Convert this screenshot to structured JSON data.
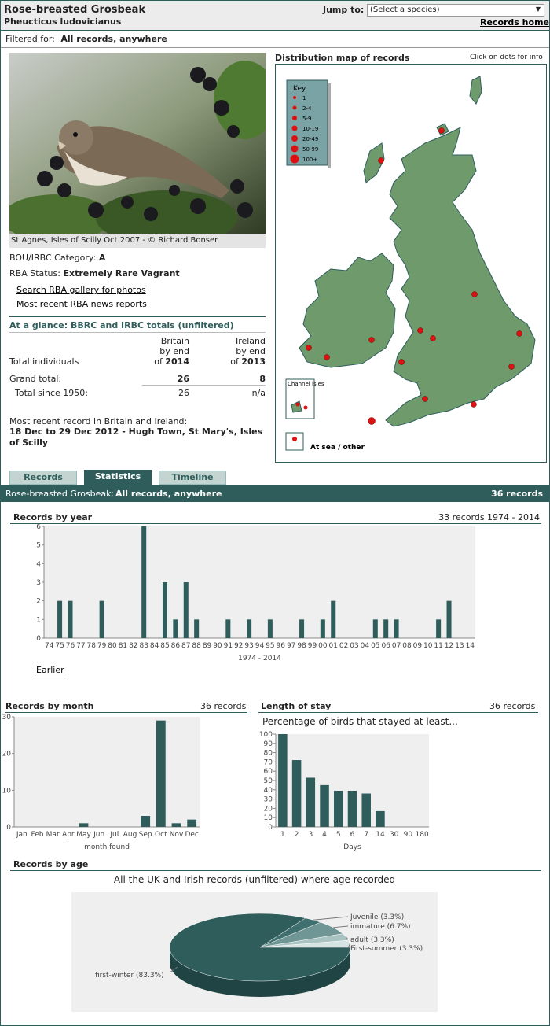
{
  "header": {
    "species_name": "Rose-breasted Grosbeak",
    "scientific_name": "Pheucticus ludovicianus",
    "jump_label": "Jump to:",
    "species_select": "(Select a species)",
    "records_home": "Records home"
  },
  "filter": {
    "label": "Filtered for:",
    "value": "All records, anywhere"
  },
  "photo": {
    "caption": "St Agnes, Isles of Scilly Oct 2007 - © Richard Bonser"
  },
  "info": {
    "category_label": "BOU/IRBC Category:",
    "category_value": "A",
    "status_label": "RBA Status:",
    "status_value": "Extremely Rare Vagrant",
    "link_gallery": "Search RBA gallery for photos",
    "link_news": "Most recent RBA news reports"
  },
  "glance": {
    "title": "At a glance: BBRC and IRBC totals (unfiltered)",
    "col1_l1": "Britain",
    "col1_l2": "by end",
    "col1_l3": "of",
    "col1_year": "2014",
    "col2_l1": "Ireland",
    "col2_l2": "by end",
    "col2_l3": "of",
    "col2_year": "2013",
    "row_individuals": "Total individuals",
    "row_grand": "Grand total:",
    "grand_britain": "26",
    "grand_ireland": "8",
    "row_since": "Total since 1950:",
    "since_britain": "26",
    "since_ireland": "n/a",
    "recent_label": "Most recent record in Britain and Ireland:",
    "recent_value": "18 Dec to 29 Dec 2012 - Hugh Town, St Mary's, Isles of Scilly"
  },
  "map": {
    "title": "Distribution map of records",
    "hint": "Click on dots for info",
    "key_title": "Key",
    "key_items": [
      "1",
      "2-4",
      "5-9",
      "10-19",
      "20-49",
      "50-99",
      "100+"
    ],
    "channel_label": "Channel Isles",
    "sea_label": "At sea / other"
  },
  "tabs": {
    "records": "Records",
    "statistics": "Statistics",
    "timeline": "Timeline"
  },
  "summary": {
    "species": "Rose-breasted Grosbeak:",
    "filter": "All records, anywhere",
    "count": "36 records"
  },
  "year_section": {
    "title": "Records by year",
    "info": "33 records 1974 - 2014",
    "earlier": "Earlier"
  },
  "month_section": {
    "title": "Records by month",
    "info": "36 records"
  },
  "stay_section": {
    "title": "Length of stay",
    "info": "36 records"
  },
  "age_section": {
    "title": "Records by age",
    "subtitle": "All the UK and Irish records (unfiltered) where age recorded"
  },
  "chart_data": [
    {
      "type": "bar",
      "name": "records-by-year",
      "xlabel": "1974 - 2014",
      "ylim": [
        0,
        6
      ],
      "yticks": [
        0,
        1,
        2,
        3,
        4,
        5,
        6
      ],
      "categories": [
        "74",
        "75",
        "76",
        "77",
        "78",
        "79",
        "80",
        "81",
        "82",
        "83",
        "84",
        "85",
        "86",
        "87",
        "88",
        "89",
        "90",
        "91",
        "92",
        "93",
        "94",
        "95",
        "96",
        "97",
        "98",
        "99",
        "00",
        "01",
        "02",
        "03",
        "04",
        "05",
        "06",
        "07",
        "08",
        "09",
        "10",
        "11",
        "12",
        "13",
        "14"
      ],
      "values": [
        0,
        2,
        2,
        0,
        0,
        2,
        0,
        0,
        0,
        6,
        0,
        3,
        1,
        3,
        1,
        0,
        0,
        1,
        0,
        1,
        0,
        1,
        0,
        0,
        1,
        0,
        1,
        2,
        0,
        0,
        0,
        1,
        1,
        1,
        0,
        0,
        0,
        1,
        2,
        0,
        0
      ]
    },
    {
      "type": "bar",
      "name": "records-by-month",
      "xlabel": "month found",
      "ylim": [
        0,
        30
      ],
      "yticks": [
        0,
        10,
        20,
        30
      ],
      "categories": [
        "Jan",
        "Feb",
        "Mar",
        "Apr",
        "May",
        "Jun",
        "Jul",
        "Aug",
        "Sep",
        "Oct",
        "Nov",
        "Dec"
      ],
      "values": [
        0,
        0,
        0,
        0,
        1,
        0,
        0,
        0,
        3,
        29,
        1,
        2
      ]
    },
    {
      "type": "bar",
      "name": "length-of-stay",
      "title": "Percentage of birds that stayed at least...",
      "xlabel": "Days",
      "ylim": [
        0,
        100
      ],
      "yticks": [
        0,
        10,
        20,
        30,
        40,
        50,
        60,
        70,
        80,
        90,
        100
      ],
      "categories": [
        "1",
        "2",
        "3",
        "4",
        "5",
        "6",
        "7",
        "14",
        "30",
        "90",
        "180"
      ],
      "values": [
        100,
        72,
        53,
        45,
        39,
        39,
        36,
        17,
        0,
        0,
        0
      ]
    },
    {
      "type": "pie",
      "name": "records-by-age",
      "slices": [
        {
          "label": "first-winter (83.3%)",
          "value": 83.3,
          "color": "#2f5d5c"
        },
        {
          "label": "Juvenile (3.3%)",
          "value": 3.3,
          "color": "#3f6f6e"
        },
        {
          "label": "immature (6.7%)",
          "value": 6.7,
          "color": "#6f9594"
        },
        {
          "label": "adult (3.3%)",
          "value": 3.3,
          "color": "#a9c3c2"
        },
        {
          "label": "First-summer (3.3%)",
          "value": 3.3,
          "color": "#d5e3e2"
        }
      ]
    }
  ],
  "colors": {
    "teal": "#2f5d5c",
    "land": "#6f9a6c",
    "sea": "#ffffff",
    "dot": "#dd1111"
  }
}
